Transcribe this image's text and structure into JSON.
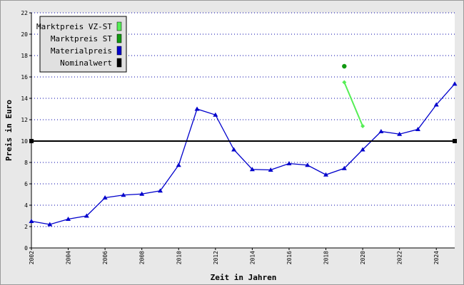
{
  "chart_data": {
    "type": "line",
    "xlabel": "Zeit in Jahren",
    "ylabel": "Preis in Euro",
    "xlim": [
      2002,
      2025
    ],
    "ylim": [
      0,
      22
    ],
    "x_ticks": [
      2002,
      2004,
      2006,
      2008,
      2010,
      2012,
      2014,
      2016,
      2018,
      2020,
      2022,
      2024
    ],
    "y_ticks": [
      0,
      2,
      4,
      6,
      8,
      10,
      12,
      14,
      16,
      18,
      20,
      22
    ],
    "grid": "horizontal dotted",
    "legend_position": "top-left",
    "legend": [
      {
        "name": "Marktpreis VZ-ST",
        "color": "#55ee55"
      },
      {
        "name": "Marktpreis ST",
        "color": "#119911"
      },
      {
        "name": "Materialpreis",
        "color": "#0000cc"
      },
      {
        "name": "Nominalwert",
        "color": "#000000"
      }
    ],
    "series": [
      {
        "name": "Materialpreis",
        "color": "#0000cc",
        "marker": "triangle",
        "x": [
          2002,
          2003,
          2004,
          2005,
          2006,
          2007,
          2008,
          2009,
          2010,
          2011,
          2012,
          2013,
          2014,
          2015,
          2016,
          2017,
          2018,
          2019,
          2020,
          2021,
          2022,
          2023,
          2024,
          2025
        ],
        "y": [
          2.5,
          2.2,
          2.7,
          3.0,
          4.7,
          4.95,
          5.05,
          5.35,
          7.75,
          13.0,
          12.45,
          9.2,
          7.35,
          7.3,
          7.9,
          7.75,
          6.85,
          7.45,
          9.2,
          10.9,
          10.65,
          11.1,
          13.4,
          15.35
        ]
      },
      {
        "name": "Marktpreis VZ-ST",
        "color": "#55ee55",
        "marker": "diamond",
        "x": [
          2019,
          2020
        ],
        "y": [
          15.5,
          11.4
        ]
      },
      {
        "name": "Marktpreis ST",
        "color": "#119911",
        "marker": "circle",
        "x": [
          2019
        ],
        "y": [
          17.0
        ]
      },
      {
        "name": "Nominalwert",
        "color": "#000000",
        "marker": "square",
        "x": [
          2002,
          2025
        ],
        "y": [
          10,
          10
        ]
      }
    ]
  }
}
